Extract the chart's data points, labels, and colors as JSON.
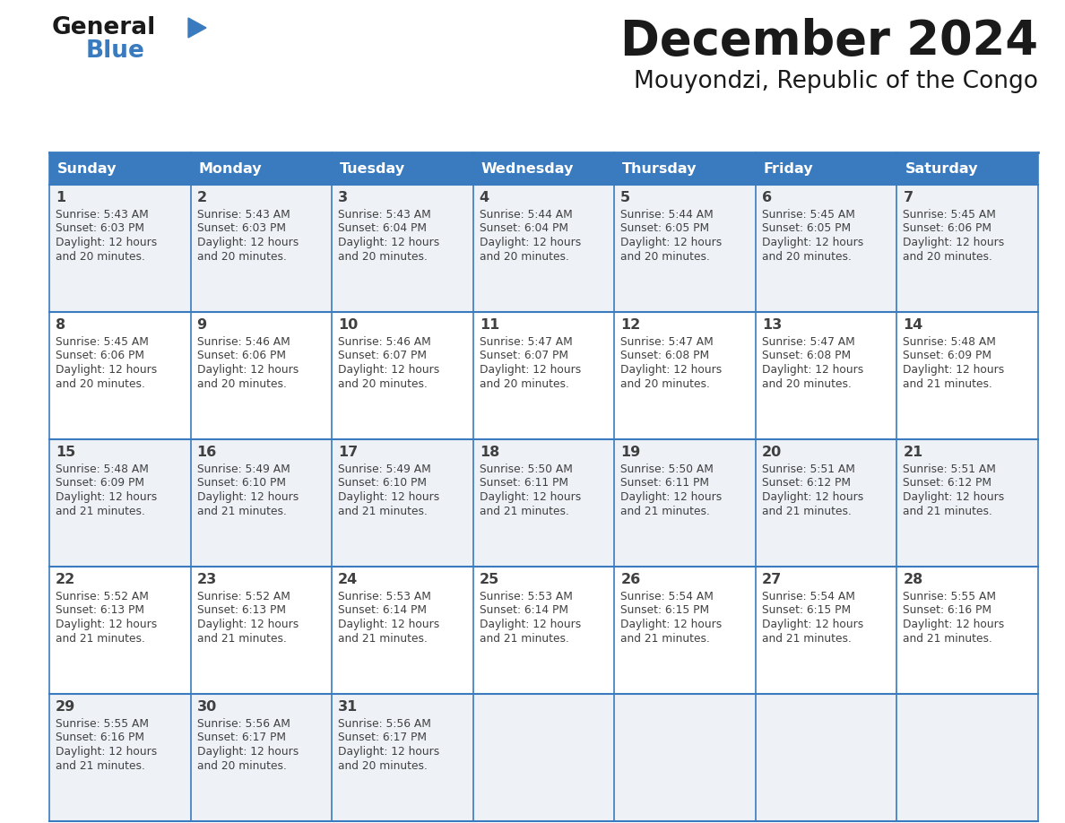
{
  "title": "December 2024",
  "subtitle": "Mouyondzi, Republic of the Congo",
  "days_of_week": [
    "Sunday",
    "Monday",
    "Tuesday",
    "Wednesday",
    "Thursday",
    "Friday",
    "Saturday"
  ],
  "header_bg": "#3a7bbf",
  "header_text": "#ffffff",
  "row_bg_odd": "#eef2f7",
  "row_bg_even": "#ffffff",
  "border_color": "#3a7bbf",
  "text_color": "#404040",
  "calendar": [
    [
      {
        "day": 1,
        "sunrise": "5:43 AM",
        "sunset": "6:03 PM",
        "daylight": "12 hours and 20 minutes."
      },
      {
        "day": 2,
        "sunrise": "5:43 AM",
        "sunset": "6:03 PM",
        "daylight": "12 hours and 20 minutes."
      },
      {
        "day": 3,
        "sunrise": "5:43 AM",
        "sunset": "6:04 PM",
        "daylight": "12 hours and 20 minutes."
      },
      {
        "day": 4,
        "sunrise": "5:44 AM",
        "sunset": "6:04 PM",
        "daylight": "12 hours and 20 minutes."
      },
      {
        "day": 5,
        "sunrise": "5:44 AM",
        "sunset": "6:05 PM",
        "daylight": "12 hours and 20 minutes."
      },
      {
        "day": 6,
        "sunrise": "5:45 AM",
        "sunset": "6:05 PM",
        "daylight": "12 hours and 20 minutes."
      },
      {
        "day": 7,
        "sunrise": "5:45 AM",
        "sunset": "6:06 PM",
        "daylight": "12 hours and 20 minutes."
      }
    ],
    [
      {
        "day": 8,
        "sunrise": "5:45 AM",
        "sunset": "6:06 PM",
        "daylight": "12 hours and 20 minutes."
      },
      {
        "day": 9,
        "sunrise": "5:46 AM",
        "sunset": "6:06 PM",
        "daylight": "12 hours and 20 minutes."
      },
      {
        "day": 10,
        "sunrise": "5:46 AM",
        "sunset": "6:07 PM",
        "daylight": "12 hours and 20 minutes."
      },
      {
        "day": 11,
        "sunrise": "5:47 AM",
        "sunset": "6:07 PM",
        "daylight": "12 hours and 20 minutes."
      },
      {
        "day": 12,
        "sunrise": "5:47 AM",
        "sunset": "6:08 PM",
        "daylight": "12 hours and 20 minutes."
      },
      {
        "day": 13,
        "sunrise": "5:47 AM",
        "sunset": "6:08 PM",
        "daylight": "12 hours and 20 minutes."
      },
      {
        "day": 14,
        "sunrise": "5:48 AM",
        "sunset": "6:09 PM",
        "daylight": "12 hours and 21 minutes."
      }
    ],
    [
      {
        "day": 15,
        "sunrise": "5:48 AM",
        "sunset": "6:09 PM",
        "daylight": "12 hours and 21 minutes."
      },
      {
        "day": 16,
        "sunrise": "5:49 AM",
        "sunset": "6:10 PM",
        "daylight": "12 hours and 21 minutes."
      },
      {
        "day": 17,
        "sunrise": "5:49 AM",
        "sunset": "6:10 PM",
        "daylight": "12 hours and 21 minutes."
      },
      {
        "day": 18,
        "sunrise": "5:50 AM",
        "sunset": "6:11 PM",
        "daylight": "12 hours and 21 minutes."
      },
      {
        "day": 19,
        "sunrise": "5:50 AM",
        "sunset": "6:11 PM",
        "daylight": "12 hours and 21 minutes."
      },
      {
        "day": 20,
        "sunrise": "5:51 AM",
        "sunset": "6:12 PM",
        "daylight": "12 hours and 21 minutes."
      },
      {
        "day": 21,
        "sunrise": "5:51 AM",
        "sunset": "6:12 PM",
        "daylight": "12 hours and 21 minutes."
      }
    ],
    [
      {
        "day": 22,
        "sunrise": "5:52 AM",
        "sunset": "6:13 PM",
        "daylight": "12 hours and 21 minutes."
      },
      {
        "day": 23,
        "sunrise": "5:52 AM",
        "sunset": "6:13 PM",
        "daylight": "12 hours and 21 minutes."
      },
      {
        "day": 24,
        "sunrise": "5:53 AM",
        "sunset": "6:14 PM",
        "daylight": "12 hours and 21 minutes."
      },
      {
        "day": 25,
        "sunrise": "5:53 AM",
        "sunset": "6:14 PM",
        "daylight": "12 hours and 21 minutes."
      },
      {
        "day": 26,
        "sunrise": "5:54 AM",
        "sunset": "6:15 PM",
        "daylight": "12 hours and 21 minutes."
      },
      {
        "day": 27,
        "sunrise": "5:54 AM",
        "sunset": "6:15 PM",
        "daylight": "12 hours and 21 minutes."
      },
      {
        "day": 28,
        "sunrise": "5:55 AM",
        "sunset": "6:16 PM",
        "daylight": "12 hours and 21 minutes."
      }
    ],
    [
      {
        "day": 29,
        "sunrise": "5:55 AM",
        "sunset": "6:16 PM",
        "daylight": "12 hours and 21 minutes."
      },
      {
        "day": 30,
        "sunrise": "5:56 AM",
        "sunset": "6:17 PM",
        "daylight": "12 hours and 20 minutes."
      },
      {
        "day": 31,
        "sunrise": "5:56 AM",
        "sunset": "6:17 PM",
        "daylight": "12 hours and 20 minutes."
      },
      null,
      null,
      null,
      null
    ]
  ],
  "logo_triangle_color": "#3a7bbf",
  "fig_width": 11.88,
  "fig_height": 9.18,
  "dpi": 100
}
